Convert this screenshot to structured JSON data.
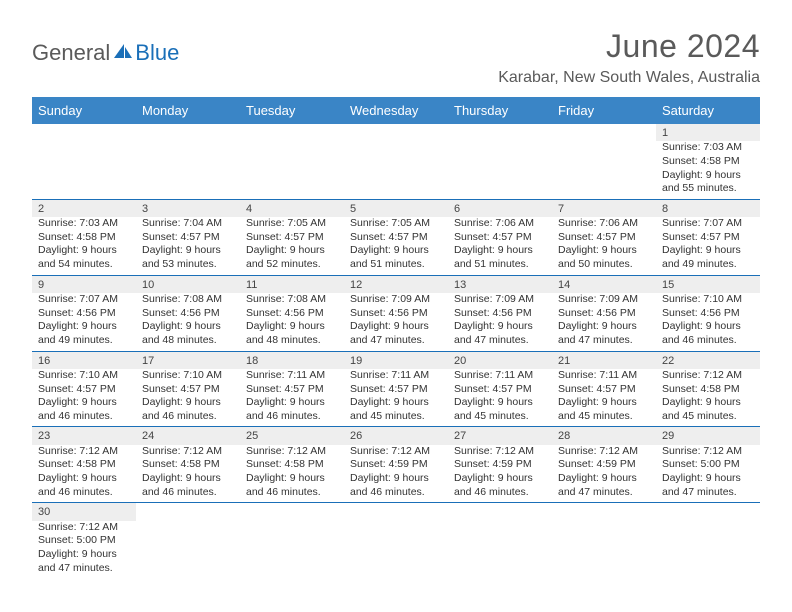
{
  "logo": {
    "text_general": "General",
    "text_blue": "Blue"
  },
  "title": "June 2024",
  "location": "Karabar, New South Wales, Australia",
  "colors": {
    "header_bg": "#3a85c6",
    "header_text": "#ffffff",
    "daynum_bg": "#eeeeee",
    "border": "#1a6fb8",
    "text": "#333333"
  },
  "weekdays": [
    "Sunday",
    "Monday",
    "Tuesday",
    "Wednesday",
    "Thursday",
    "Friday",
    "Saturday"
  ],
  "weeks": [
    {
      "days": [
        {
          "n": "",
          "sunrise": "",
          "sunset": "",
          "daylight": ""
        },
        {
          "n": "",
          "sunrise": "",
          "sunset": "",
          "daylight": ""
        },
        {
          "n": "",
          "sunrise": "",
          "sunset": "",
          "daylight": ""
        },
        {
          "n": "",
          "sunrise": "",
          "sunset": "",
          "daylight": ""
        },
        {
          "n": "",
          "sunrise": "",
          "sunset": "",
          "daylight": ""
        },
        {
          "n": "",
          "sunrise": "",
          "sunset": "",
          "daylight": ""
        },
        {
          "n": "1",
          "sunrise": "Sunrise: 7:03 AM",
          "sunset": "Sunset: 4:58 PM",
          "daylight": "Daylight: 9 hours and 55 minutes."
        }
      ]
    },
    {
      "days": [
        {
          "n": "2",
          "sunrise": "Sunrise: 7:03 AM",
          "sunset": "Sunset: 4:58 PM",
          "daylight": "Daylight: 9 hours and 54 minutes."
        },
        {
          "n": "3",
          "sunrise": "Sunrise: 7:04 AM",
          "sunset": "Sunset: 4:57 PM",
          "daylight": "Daylight: 9 hours and 53 minutes."
        },
        {
          "n": "4",
          "sunrise": "Sunrise: 7:05 AM",
          "sunset": "Sunset: 4:57 PM",
          "daylight": "Daylight: 9 hours and 52 minutes."
        },
        {
          "n": "5",
          "sunrise": "Sunrise: 7:05 AM",
          "sunset": "Sunset: 4:57 PM",
          "daylight": "Daylight: 9 hours and 51 minutes."
        },
        {
          "n": "6",
          "sunrise": "Sunrise: 7:06 AM",
          "sunset": "Sunset: 4:57 PM",
          "daylight": "Daylight: 9 hours and 51 minutes."
        },
        {
          "n": "7",
          "sunrise": "Sunrise: 7:06 AM",
          "sunset": "Sunset: 4:57 PM",
          "daylight": "Daylight: 9 hours and 50 minutes."
        },
        {
          "n": "8",
          "sunrise": "Sunrise: 7:07 AM",
          "sunset": "Sunset: 4:57 PM",
          "daylight": "Daylight: 9 hours and 49 minutes."
        }
      ]
    },
    {
      "days": [
        {
          "n": "9",
          "sunrise": "Sunrise: 7:07 AM",
          "sunset": "Sunset: 4:56 PM",
          "daylight": "Daylight: 9 hours and 49 minutes."
        },
        {
          "n": "10",
          "sunrise": "Sunrise: 7:08 AM",
          "sunset": "Sunset: 4:56 PM",
          "daylight": "Daylight: 9 hours and 48 minutes."
        },
        {
          "n": "11",
          "sunrise": "Sunrise: 7:08 AM",
          "sunset": "Sunset: 4:56 PM",
          "daylight": "Daylight: 9 hours and 48 minutes."
        },
        {
          "n": "12",
          "sunrise": "Sunrise: 7:09 AM",
          "sunset": "Sunset: 4:56 PM",
          "daylight": "Daylight: 9 hours and 47 minutes."
        },
        {
          "n": "13",
          "sunrise": "Sunrise: 7:09 AM",
          "sunset": "Sunset: 4:56 PM",
          "daylight": "Daylight: 9 hours and 47 minutes."
        },
        {
          "n": "14",
          "sunrise": "Sunrise: 7:09 AM",
          "sunset": "Sunset: 4:56 PM",
          "daylight": "Daylight: 9 hours and 47 minutes."
        },
        {
          "n": "15",
          "sunrise": "Sunrise: 7:10 AM",
          "sunset": "Sunset: 4:56 PM",
          "daylight": "Daylight: 9 hours and 46 minutes."
        }
      ]
    },
    {
      "days": [
        {
          "n": "16",
          "sunrise": "Sunrise: 7:10 AM",
          "sunset": "Sunset: 4:57 PM",
          "daylight": "Daylight: 9 hours and 46 minutes."
        },
        {
          "n": "17",
          "sunrise": "Sunrise: 7:10 AM",
          "sunset": "Sunset: 4:57 PM",
          "daylight": "Daylight: 9 hours and 46 minutes."
        },
        {
          "n": "18",
          "sunrise": "Sunrise: 7:11 AM",
          "sunset": "Sunset: 4:57 PM",
          "daylight": "Daylight: 9 hours and 46 minutes."
        },
        {
          "n": "19",
          "sunrise": "Sunrise: 7:11 AM",
          "sunset": "Sunset: 4:57 PM",
          "daylight": "Daylight: 9 hours and 45 minutes."
        },
        {
          "n": "20",
          "sunrise": "Sunrise: 7:11 AM",
          "sunset": "Sunset: 4:57 PM",
          "daylight": "Daylight: 9 hours and 45 minutes."
        },
        {
          "n": "21",
          "sunrise": "Sunrise: 7:11 AM",
          "sunset": "Sunset: 4:57 PM",
          "daylight": "Daylight: 9 hours and 45 minutes."
        },
        {
          "n": "22",
          "sunrise": "Sunrise: 7:12 AM",
          "sunset": "Sunset: 4:58 PM",
          "daylight": "Daylight: 9 hours and 45 minutes."
        }
      ]
    },
    {
      "days": [
        {
          "n": "23",
          "sunrise": "Sunrise: 7:12 AM",
          "sunset": "Sunset: 4:58 PM",
          "daylight": "Daylight: 9 hours and 46 minutes."
        },
        {
          "n": "24",
          "sunrise": "Sunrise: 7:12 AM",
          "sunset": "Sunset: 4:58 PM",
          "daylight": "Daylight: 9 hours and 46 minutes."
        },
        {
          "n": "25",
          "sunrise": "Sunrise: 7:12 AM",
          "sunset": "Sunset: 4:58 PM",
          "daylight": "Daylight: 9 hours and 46 minutes."
        },
        {
          "n": "26",
          "sunrise": "Sunrise: 7:12 AM",
          "sunset": "Sunset: 4:59 PM",
          "daylight": "Daylight: 9 hours and 46 minutes."
        },
        {
          "n": "27",
          "sunrise": "Sunrise: 7:12 AM",
          "sunset": "Sunset: 4:59 PM",
          "daylight": "Daylight: 9 hours and 46 minutes."
        },
        {
          "n": "28",
          "sunrise": "Sunrise: 7:12 AM",
          "sunset": "Sunset: 4:59 PM",
          "daylight": "Daylight: 9 hours and 47 minutes."
        },
        {
          "n": "29",
          "sunrise": "Sunrise: 7:12 AM",
          "sunset": "Sunset: 5:00 PM",
          "daylight": "Daylight: 9 hours and 47 minutes."
        }
      ]
    },
    {
      "days": [
        {
          "n": "30",
          "sunrise": "Sunrise: 7:12 AM",
          "sunset": "Sunset: 5:00 PM",
          "daylight": "Daylight: 9 hours and 47 minutes."
        },
        {
          "n": "",
          "sunrise": "",
          "sunset": "",
          "daylight": ""
        },
        {
          "n": "",
          "sunrise": "",
          "sunset": "",
          "daylight": ""
        },
        {
          "n": "",
          "sunrise": "",
          "sunset": "",
          "daylight": ""
        },
        {
          "n": "",
          "sunrise": "",
          "sunset": "",
          "daylight": ""
        },
        {
          "n": "",
          "sunrise": "",
          "sunset": "",
          "daylight": ""
        },
        {
          "n": "",
          "sunrise": "",
          "sunset": "",
          "daylight": ""
        }
      ]
    }
  ]
}
